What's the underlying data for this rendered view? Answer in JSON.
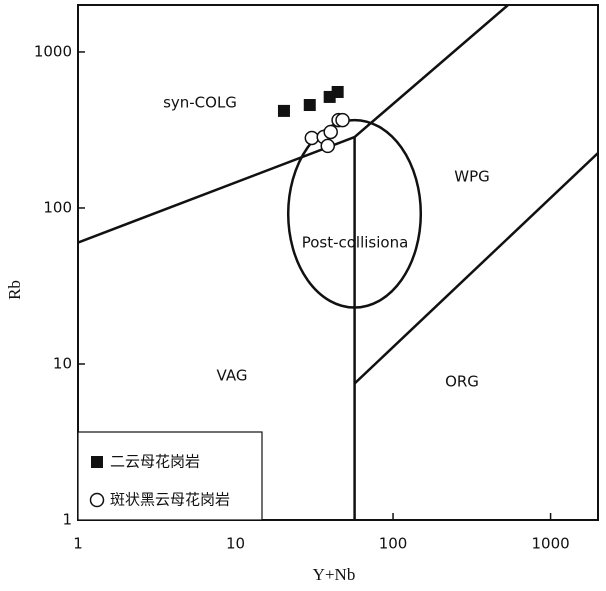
{
  "chart_data": {
    "type": "scatter",
    "xlabel": "Y+Nb",
    "ylabel": "Rb",
    "xscale": "log",
    "yscale": "log",
    "xlim": [
      1,
      2000
    ],
    "ylim": [
      1,
      2000
    ],
    "xticks": [
      1,
      10,
      100,
      1000
    ],
    "yticks": [
      1,
      10,
      100,
      1000
    ],
    "series": [
      {
        "name": "二云母花岗岩",
        "marker": "square",
        "color": "#111111",
        "x": [
          20.3,
          29.6,
          39.6,
          44.5
        ],
        "values": [
          419,
          457,
          515,
          554
        ]
      },
      {
        "name": "斑状黑云母花岗岩",
        "marker": "circle",
        "color": "#111111",
        "x": [
          30.5,
          36.3,
          40.2,
          45.1,
          47.8,
          38.5
        ],
        "values": [
          281,
          285,
          307,
          366,
          366,
          250
        ]
      }
    ],
    "boundaries": [
      {
        "x": [
          1,
          57,
          537
        ],
        "y": [
          60,
          285,
          2000
        ]
      },
      {
        "x": [
          57,
          57
        ],
        "y": [
          285,
          1
        ]
      },
      {
        "x": [
          57,
          2000
        ],
        "y": [
          7.5,
          225
        ]
      }
    ],
    "post_collision_field": {
      "x_range": [
        21.6,
        150
      ],
      "y_range": [
        23,
        366
      ]
    },
    "regions": [
      "syn-COLG",
      "WPG",
      "Post-collisiona",
      "VAG",
      "ORG"
    ]
  }
}
